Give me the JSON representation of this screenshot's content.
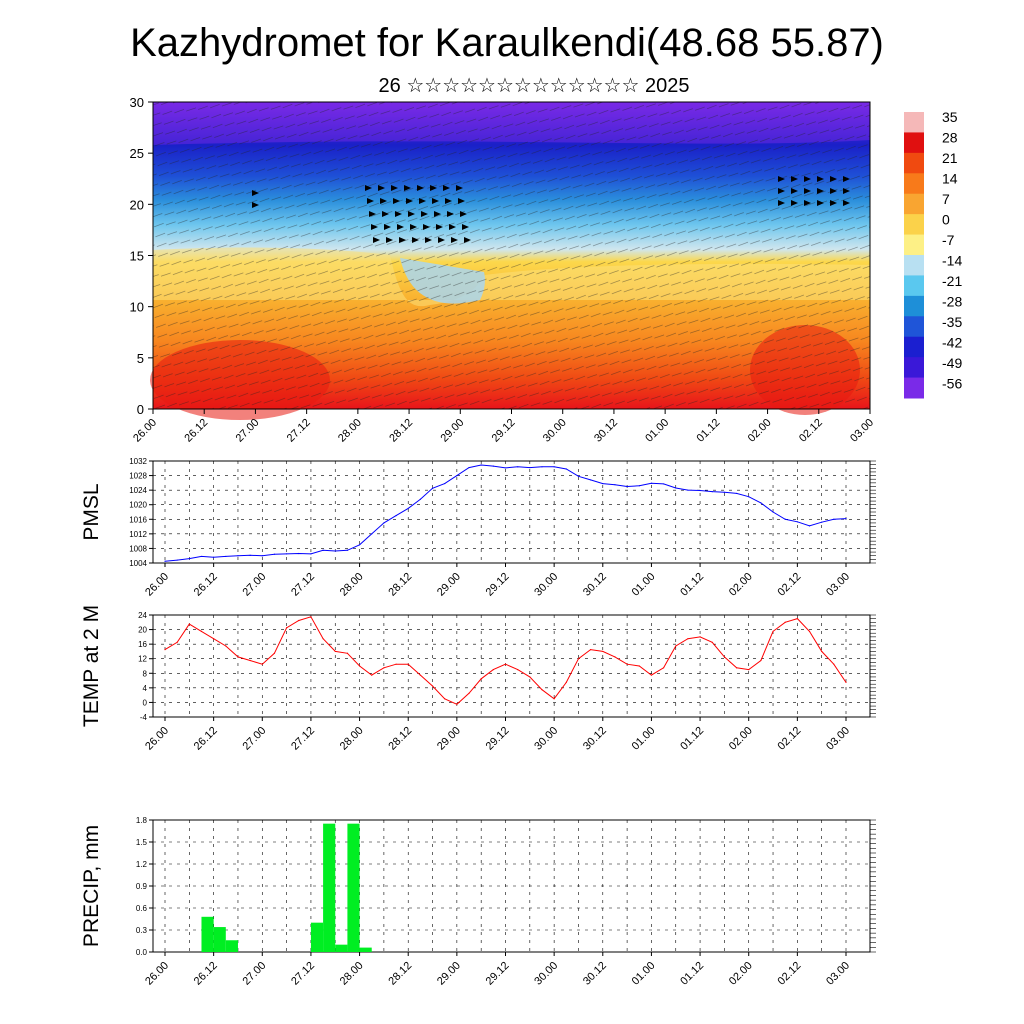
{
  "title": "Kazhydromet for Karaulkendi(48.68 55.87)",
  "subtitle": "26 ☆☆☆☆☆☆☆☆☆☆☆☆☆ 2025",
  "chart_data": [
    {
      "type": "heatmap",
      "ylim": [
        0,
        30
      ],
      "yticks": [
        0,
        5,
        10,
        15,
        20,
        25,
        30
      ],
      "xticks": [
        "26.00",
        "26.12",
        "27.00",
        "27.12",
        "28.00",
        "28.12",
        "29.00",
        "29.12",
        "30.00",
        "30.12",
        "01.00",
        "01.12",
        "02.00",
        "02.12",
        "03.00"
      ],
      "colorbar": {
        "labels": [
          "35",
          "28",
          "21",
          "14",
          "7",
          "0",
          "-7",
          "-14",
          "-21",
          "-28",
          "-35",
          "-42",
          "-49",
          "-56"
        ],
        "colors": [
          "#f5b8b8",
          "#e01010",
          "#f04a10",
          "#f87a1a",
          "#f9a531",
          "#fbd24a",
          "#fdf086",
          "#b8e0f2",
          "#5ac8ef",
          "#1e8fd8",
          "#1f55d8",
          "#1b1fd0",
          "#3a18d8",
          "#7a2ae8"
        ]
      }
    },
    {
      "type": "line",
      "ylabel": "PMSL",
      "ylim": [
        1004,
        1032
      ],
      "yticks": [
        1004,
        1008,
        1012,
        1016,
        1020,
        1024,
        1028,
        1032
      ],
      "xticks": [
        "26.00",
        "26.12",
        "27.00",
        "27.12",
        "28.00",
        "28.12",
        "29.00",
        "29.12",
        "30.00",
        "30.12",
        "01.00",
        "01.12",
        "02.00",
        "02.12",
        "03.00"
      ],
      "color": "#0000ff",
      "x": [
        0,
        0.25,
        0.5,
        0.75,
        1,
        1.25,
        1.5,
        1.75,
        2,
        2.25,
        2.5,
        2.75,
        3,
        3.25,
        3.5,
        3.75,
        4,
        4.25,
        4.5,
        4.75,
        5,
        5.25,
        5.5,
        5.75,
        6,
        6.25,
        6.5,
        6.75,
        7,
        7.25,
        7.5,
        7.75,
        8,
        8.25,
        8.5,
        8.75,
        9,
        9.25,
        9.5,
        9.75,
        10,
        10.25,
        10.5,
        10.75,
        11,
        11.25,
        11.5,
        11.75,
        12,
        12.25,
        12.5,
        12.75,
        13,
        13.25,
        13.5,
        13.75,
        14
      ],
      "values": [
        1004.5,
        1004.8,
        1005.2,
        1005.8,
        1005.6,
        1005.8,
        1006.0,
        1006.1,
        1006.0,
        1006.4,
        1006.5,
        1006.6,
        1006.5,
        1007.5,
        1007.3,
        1007.5,
        1009.0,
        1012.0,
        1015.0,
        1017.0,
        1019.0,
        1021.5,
        1024.5,
        1025.8,
        1028.0,
        1030.2,
        1030.9,
        1030.6,
        1030.1,
        1030.4,
        1030.2,
        1030.4,
        1030.4,
        1029.8,
        1027.8,
        1026.8,
        1025.8,
        1025.5,
        1025.0,
        1025.2,
        1025.9,
        1025.7,
        1024.6,
        1024.0,
        1023.9,
        1023.6,
        1023.4,
        1023.1,
        1022.2,
        1020.5,
        1018.0,
        1016.0,
        1015.3,
        1014.2,
        1015.2,
        1016.0,
        1016.2
      ]
    },
    {
      "type": "line",
      "ylabel": "TEMP at 2 M",
      "ylim": [
        -4,
        24
      ],
      "yticks": [
        -4,
        0,
        4,
        8,
        12,
        16,
        20,
        24
      ],
      "xticks": [
        "26.00",
        "26.12",
        "27.00",
        "27.12",
        "28.00",
        "28.12",
        "29.00",
        "29.12",
        "30.00",
        "30.12",
        "01.00",
        "01.12",
        "02.00",
        "02.12",
        "03.00"
      ],
      "color": "#ff0000",
      "x": [
        0,
        0.25,
        0.5,
        0.75,
        1,
        1.25,
        1.5,
        1.75,
        2,
        2.25,
        2.5,
        2.75,
        3,
        3.25,
        3.5,
        3.75,
        4,
        4.25,
        4.5,
        4.75,
        5,
        5.25,
        5.5,
        5.75,
        6,
        6.25,
        6.5,
        6.75,
        7,
        7.25,
        7.5,
        7.75,
        8,
        8.25,
        8.5,
        8.75,
        9,
        9.25,
        9.5,
        9.75,
        10,
        10.25,
        10.5,
        10.75,
        11,
        11.25,
        11.5,
        11.75,
        12,
        12.25,
        12.5,
        12.75,
        13,
        13.25,
        13.5,
        13.75,
        14
      ],
      "values": [
        14.5,
        16.5,
        21.5,
        19.5,
        17.5,
        15.5,
        12.5,
        11.5,
        10.5,
        13.5,
        20.5,
        22.5,
        23.5,
        17.5,
        14.0,
        13.5,
        10.0,
        7.5,
        9.5,
        10.5,
        10.5,
        7.5,
        4.5,
        1.0,
        -0.5,
        2.5,
        6.5,
        9.0,
        10.5,
        9.0,
        7.0,
        3.5,
        1.0,
        5.5,
        12.0,
        14.5,
        14.0,
        12.5,
        10.5,
        10.0,
        7.5,
        9.5,
        15.5,
        17.5,
        18.0,
        16.5,
        12.5,
        9.5,
        9.0,
        11.5,
        19.5,
        22.0,
        23.0,
        19.5,
        14.0,
        10.5,
        5.5
      ]
    },
    {
      "type": "bar",
      "ylabel": "PRECIP, mm",
      "ylim": [
        0,
        1.8
      ],
      "yticks": [
        "0.0",
        "0.3",
        "0.6",
        "0.9",
        "1.2",
        "1.5",
        "1.8"
      ],
      "xticks": [
        "26.00",
        "26.12",
        "27.00",
        "27.12",
        "28.00",
        "28.12",
        "29.00",
        "29.12",
        "30.00",
        "30.12",
        "01.00",
        "01.12",
        "02.00",
        "02.12",
        "03.00"
      ],
      "color": "#00ee22",
      "x": [
        0.5,
        0.75,
        1,
        1.25,
        1.5,
        1.75,
        2,
        2.25,
        2.5,
        2.75,
        3,
        3.25,
        3.5,
        3.75,
        4,
        4.25
      ],
      "values": [
        0.0,
        0.48,
        0.34,
        0.16,
        0.0,
        0.0,
        0.0,
        0.0,
        0.0,
        0.0,
        0.4,
        1.75,
        0.1,
        1.75,
        0.06,
        0.0
      ]
    }
  ]
}
